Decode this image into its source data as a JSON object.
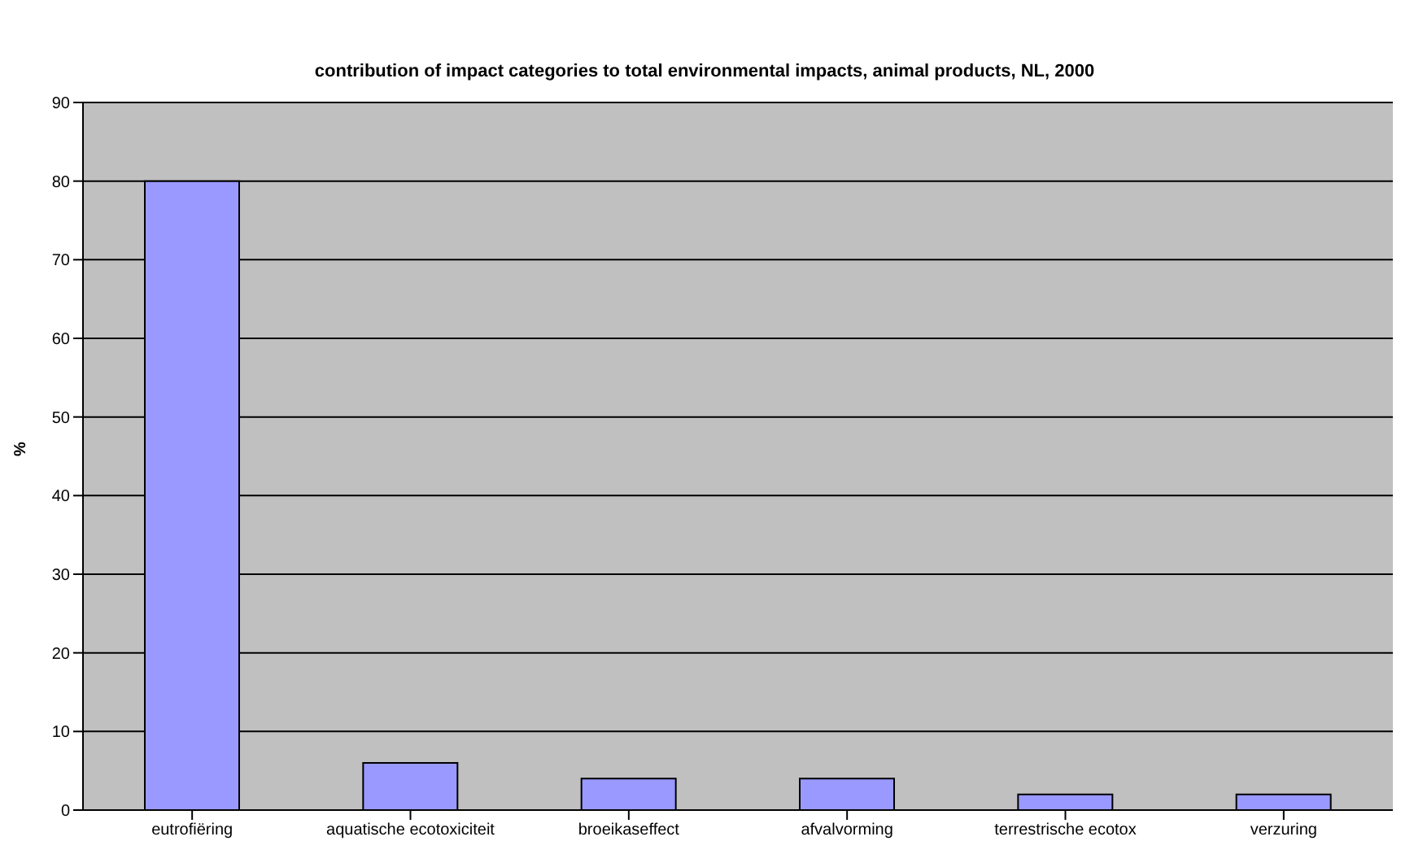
{
  "chart_data": {
    "type": "bar",
    "title": "contribution of impact categories to total environmental impacts, animal products, NL, 2000",
    "ylabel": "%",
    "categories": [
      "eutrofiëring",
      "aquatische ecotoxiciteit",
      "broeikaseffect",
      "afvalvorming",
      "terrestrische ecotox",
      "verzuring"
    ],
    "values": [
      80,
      6,
      4,
      4,
      2,
      2
    ],
    "color": "#9999ff",
    "ylim": [
      0,
      90
    ],
    "yticks": [
      0,
      10,
      20,
      30,
      40,
      50,
      60,
      70,
      80,
      90
    ],
    "grid": "y"
  }
}
